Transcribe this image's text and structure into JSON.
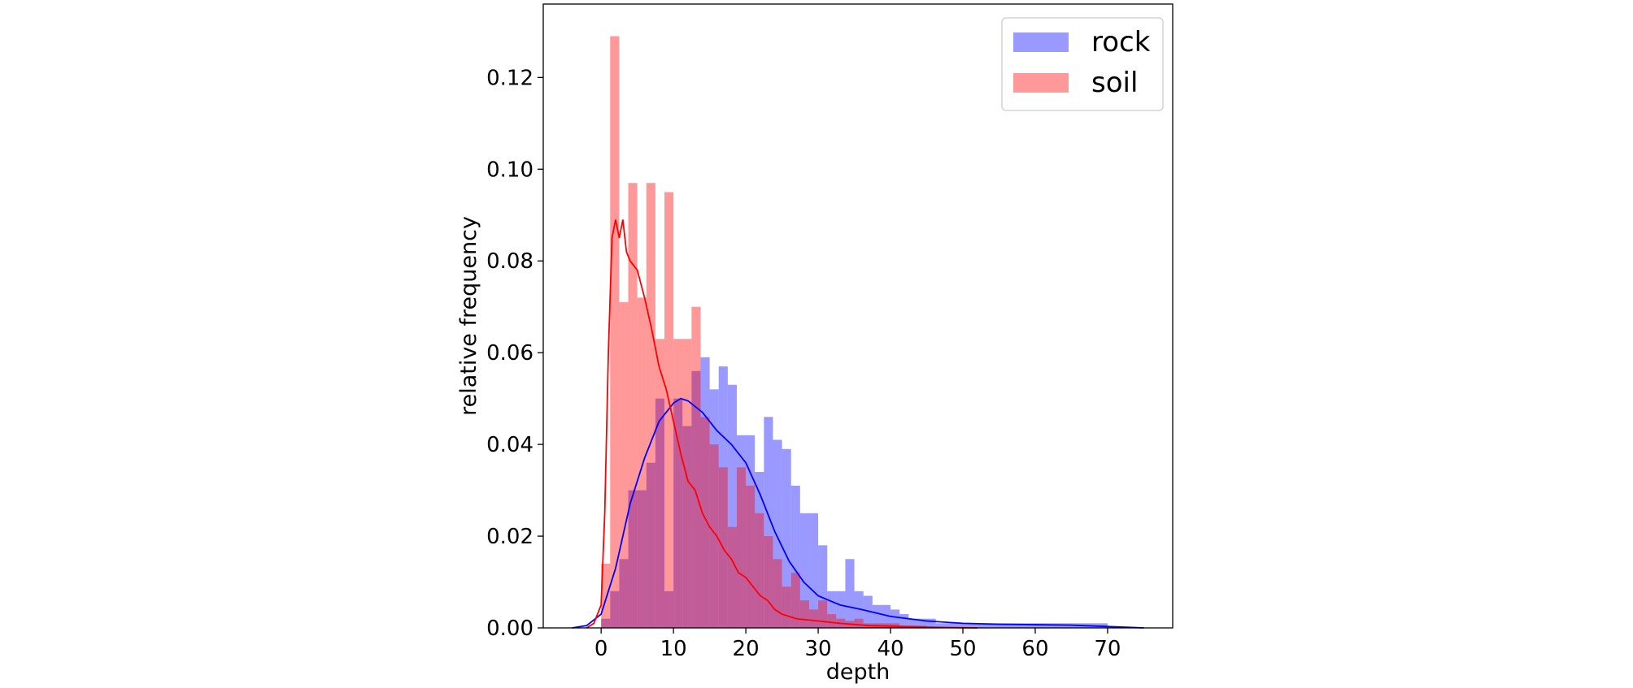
{
  "chart_data": {
    "type": "bar",
    "xlabel": "depth",
    "ylabel": "relative frequency",
    "xlim": [
      -8,
      79
    ],
    "ylim": [
      0,
      0.136
    ],
    "xticks": [
      0,
      10,
      20,
      30,
      40,
      50,
      60,
      70
    ],
    "yticks": [
      0.0,
      0.02,
      0.04,
      0.06,
      0.08,
      0.1,
      0.12
    ],
    "grid": false,
    "legend_position": "top-right",
    "bin_width": 1.25,
    "series": [
      {
        "name": "rock",
        "color": "#0000ff",
        "fill_color": "#9999f5",
        "hist_start": 0,
        "bars": [
          0.002,
          0.008,
          0.015,
          0.03,
          0.03,
          0.036,
          0.05,
          0.008,
          0.05,
          0.044,
          0.056,
          0.059,
          0.052,
          0.057,
          0.053,
          0.042,
          0.042,
          0.034,
          0.046,
          0.041,
          0.039,
          0.031,
          0.025,
          0.025,
          0.018,
          0.008,
          0.008,
          0.015,
          0.008,
          0.007,
          0.005,
          0.005,
          0.004,
          0.003,
          0.002,
          0.002,
          0.002,
          0.001,
          0.001,
          0.001,
          0.001,
          0.001,
          0.001,
          0.001,
          0.001,
          0.001,
          0.001,
          0.001,
          0.001,
          0.001,
          0.001,
          0.001,
          0.001,
          0.001,
          0.001,
          0.001
        ],
        "kde_x": [
          -4,
          -2,
          0,
          2,
          4,
          6,
          8,
          10,
          11,
          12,
          14,
          16,
          18,
          20,
          22,
          24,
          26,
          28,
          30,
          33,
          36,
          40,
          45,
          50,
          55,
          60,
          65,
          70,
          75
        ],
        "kde_y": [
          0.0,
          0.0005,
          0.003,
          0.013,
          0.027,
          0.037,
          0.045,
          0.049,
          0.05,
          0.0495,
          0.047,
          0.043,
          0.04,
          0.036,
          0.029,
          0.021,
          0.0145,
          0.01,
          0.007,
          0.005,
          0.004,
          0.0025,
          0.0015,
          0.001,
          0.0008,
          0.0007,
          0.0006,
          0.0003,
          0.0
        ]
      },
      {
        "name": "soil",
        "color": "#ff0000",
        "fill_color": "#ff9999",
        "hist_start": 0,
        "bars": [
          0.014,
          0.129,
          0.071,
          0.097,
          0.072,
          0.097,
          0.063,
          0.095,
          0.063,
          0.063,
          0.07,
          0.046,
          0.04,
          0.035,
          0.022,
          0.035,
          0.031,
          0.025,
          0.02,
          0.015,
          0.009,
          0.012,
          0.006,
          0.004,
          0.006,
          0.003,
          0.002,
          0.0015,
          0.002,
          0.001,
          0.001,
          0.001,
          0.001,
          0.0005,
          0.0005,
          0.0005
        ],
        "kde_x": [
          -2,
          -1,
          0,
          0.5,
          1,
          1.5,
          2,
          2.5,
          3,
          3.5,
          4,
          5,
          6,
          7,
          8,
          9,
          10,
          11,
          12,
          13,
          14,
          15,
          16,
          17,
          18,
          19,
          20,
          21,
          22,
          23,
          24,
          25,
          27,
          30,
          33,
          37,
          42,
          47,
          52
        ],
        "kde_y": [
          0.0,
          0.001,
          0.005,
          0.025,
          0.06,
          0.085,
          0.089,
          0.085,
          0.089,
          0.082,
          0.08,
          0.078,
          0.072,
          0.065,
          0.057,
          0.052,
          0.045,
          0.038,
          0.032,
          0.03,
          0.025,
          0.022,
          0.02,
          0.017,
          0.015,
          0.012,
          0.011,
          0.009,
          0.007,
          0.006,
          0.004,
          0.003,
          0.002,
          0.0015,
          0.001,
          0.0005,
          0.0003,
          0.0001,
          0.0
        ]
      }
    ]
  }
}
